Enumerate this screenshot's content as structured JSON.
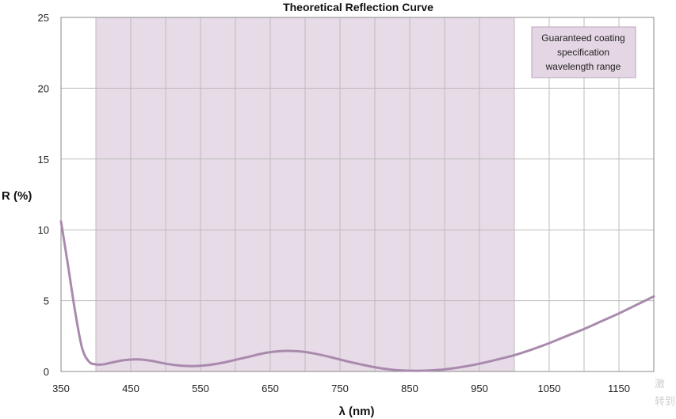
{
  "chart_data": {
    "type": "line",
    "title": "Theoretical Reflection Curve",
    "xlabel": "λ (nm)",
    "ylabel": "R (%)",
    "xlim": [
      350,
      1200
    ],
    "ylim": [
      0,
      25
    ],
    "x_ticks": [
      350,
      450,
      550,
      650,
      750,
      850,
      950,
      1050,
      1150
    ],
    "y_ticks": [
      0,
      5,
      10,
      15,
      20,
      25
    ],
    "x_grid_step": 50,
    "grid": true,
    "shaded_range": {
      "x_start": 400,
      "x_end": 1000
    },
    "legend": {
      "placement": "top-right",
      "lines": [
        "Guaranteed coating",
        "specification",
        "wavelength range"
      ]
    },
    "series": [
      {
        "color": "#a98aad",
        "x": [
          350,
          360,
          370,
          380,
          390,
          400,
          410,
          420,
          440,
          460,
          480,
          500,
          520,
          540,
          560,
          580,
          600,
          620,
          640,
          660,
          680,
          700,
          720,
          740,
          760,
          780,
          800,
          820,
          840,
          860,
          880,
          900,
          920,
          940,
          960,
          980,
          1000,
          1025,
          1050,
          1075,
          1100,
          1125,
          1150,
          1175,
          1200
        ],
        "y": [
          10.6,
          7.5,
          4.3,
          1.7,
          0.7,
          0.5,
          0.5,
          0.6,
          0.8,
          0.85,
          0.75,
          0.55,
          0.42,
          0.38,
          0.45,
          0.6,
          0.82,
          1.05,
          1.28,
          1.42,
          1.45,
          1.38,
          1.2,
          0.97,
          0.72,
          0.5,
          0.3,
          0.15,
          0.07,
          0.05,
          0.08,
          0.15,
          0.28,
          0.45,
          0.66,
          0.9,
          1.15,
          1.55,
          2.0,
          2.5,
          3.0,
          3.55,
          4.1,
          4.7,
          5.3
        ]
      }
    ]
  },
  "watermark": {
    "line1": "激",
    "line2": "转到"
  }
}
